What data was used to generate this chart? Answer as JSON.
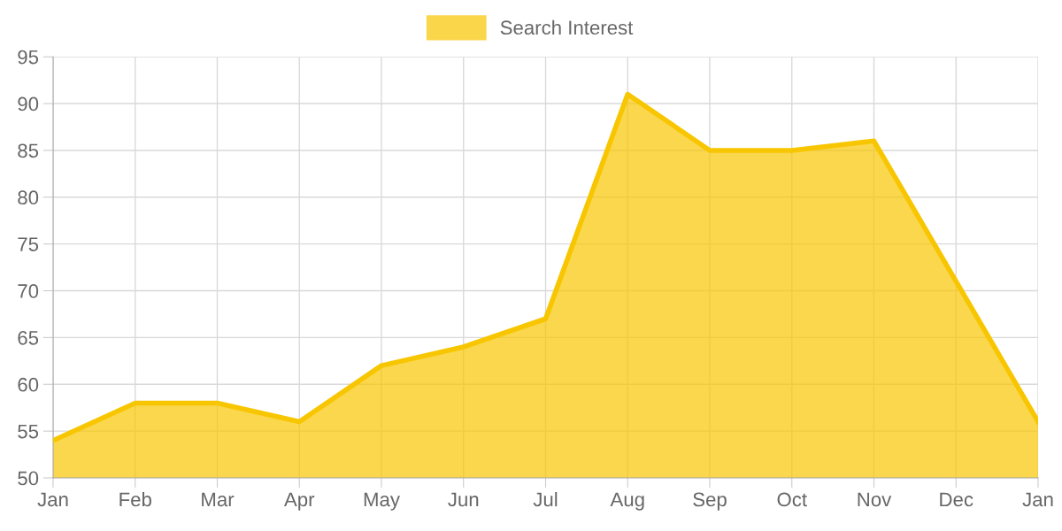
{
  "chart_data": {
    "type": "area",
    "categories": [
      "Jan",
      "Feb",
      "Mar",
      "Apr",
      "May",
      "Jun",
      "Jul",
      "Aug",
      "Sep",
      "Oct",
      "Nov",
      "Dec",
      "Jan"
    ],
    "series": [
      {
        "name": "Search Interest",
        "color": "#f8c600",
        "values": [
          54,
          58,
          58,
          56,
          62,
          64,
          67,
          91,
          85,
          85,
          86,
          71,
          56
        ]
      }
    ],
    "ylim": [
      50,
      95
    ],
    "yticks": [
      50,
      55,
      60,
      65,
      70,
      75,
      80,
      85,
      90,
      95
    ],
    "grid": true,
    "legend": "top"
  }
}
